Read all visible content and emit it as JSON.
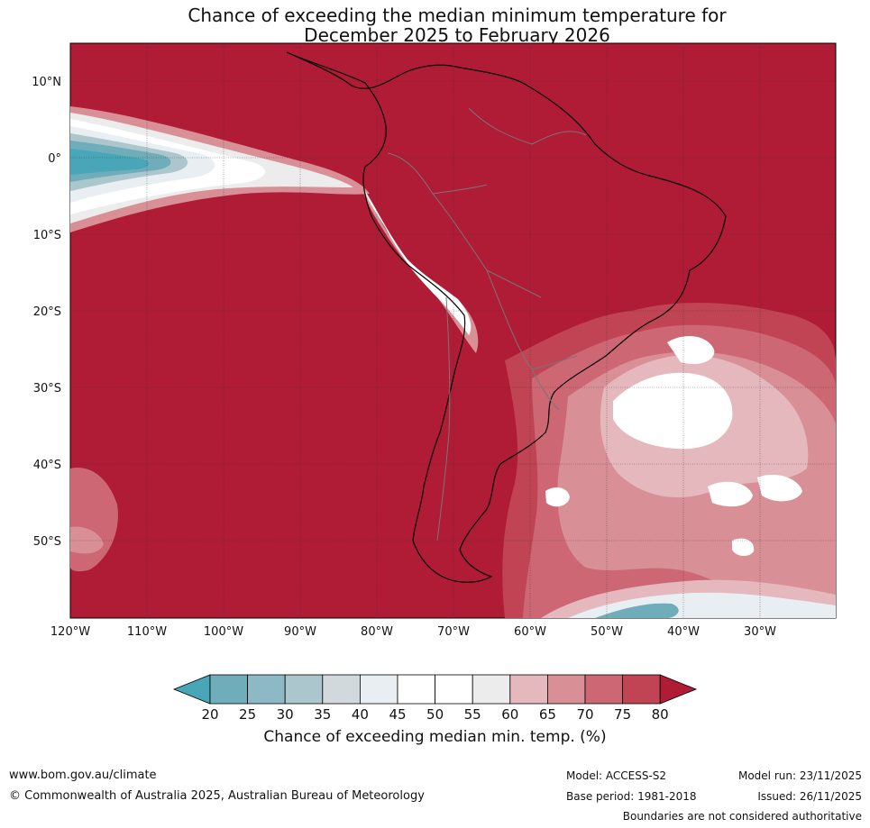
{
  "title": {
    "line1": "Chance of exceeding the median minimum temperature for",
    "line2": "December 2025 to February 2026"
  },
  "map": {
    "lat_labels": [
      "10°N",
      "0°",
      "10°S",
      "20°S",
      "30°S",
      "40°S",
      "50°S"
    ],
    "lon_labels": [
      "120°W",
      "110°W",
      "100°W",
      "90°W",
      "80°W",
      "70°W",
      "60°W",
      "50°W",
      "40°W",
      "30°W"
    ],
    "colors": {
      "c80": "#b01b36",
      "c75": "#c04454",
      "c70": "#cd6774",
      "c65": "#d88f96",
      "c60": "#e4b8bd",
      "c55": "#ececec",
      "c50": "#ffffff",
      "c45": "#ffffff",
      "c40": "#e8eef1",
      "c35": "#d2d9dc",
      "c30": "#abc6cc",
      "c25": "#8cb9c5",
      "c20": "#6fadbb",
      "below20": "#48a6b8"
    }
  },
  "colorbar": {
    "ticks": [
      "20",
      "25",
      "30",
      "35",
      "40",
      "45",
      "50",
      "55",
      "60",
      "65",
      "70",
      "75",
      "80"
    ],
    "title": "Chance of exceeding median min. temp. (%)"
  },
  "footer": {
    "url": "www.bom.gov.au/climate",
    "copyright": "© Commonwealth of Australia 2025, Australian Bureau of Meteorology",
    "model": "Model: ACCESS-S2",
    "base_period": "Base period: 1981-2018",
    "model_run": "Model run: 23/11/2025",
    "issued": "Issued: 26/11/2025",
    "disclaimer": "Boundaries are not considered authoritative"
  }
}
